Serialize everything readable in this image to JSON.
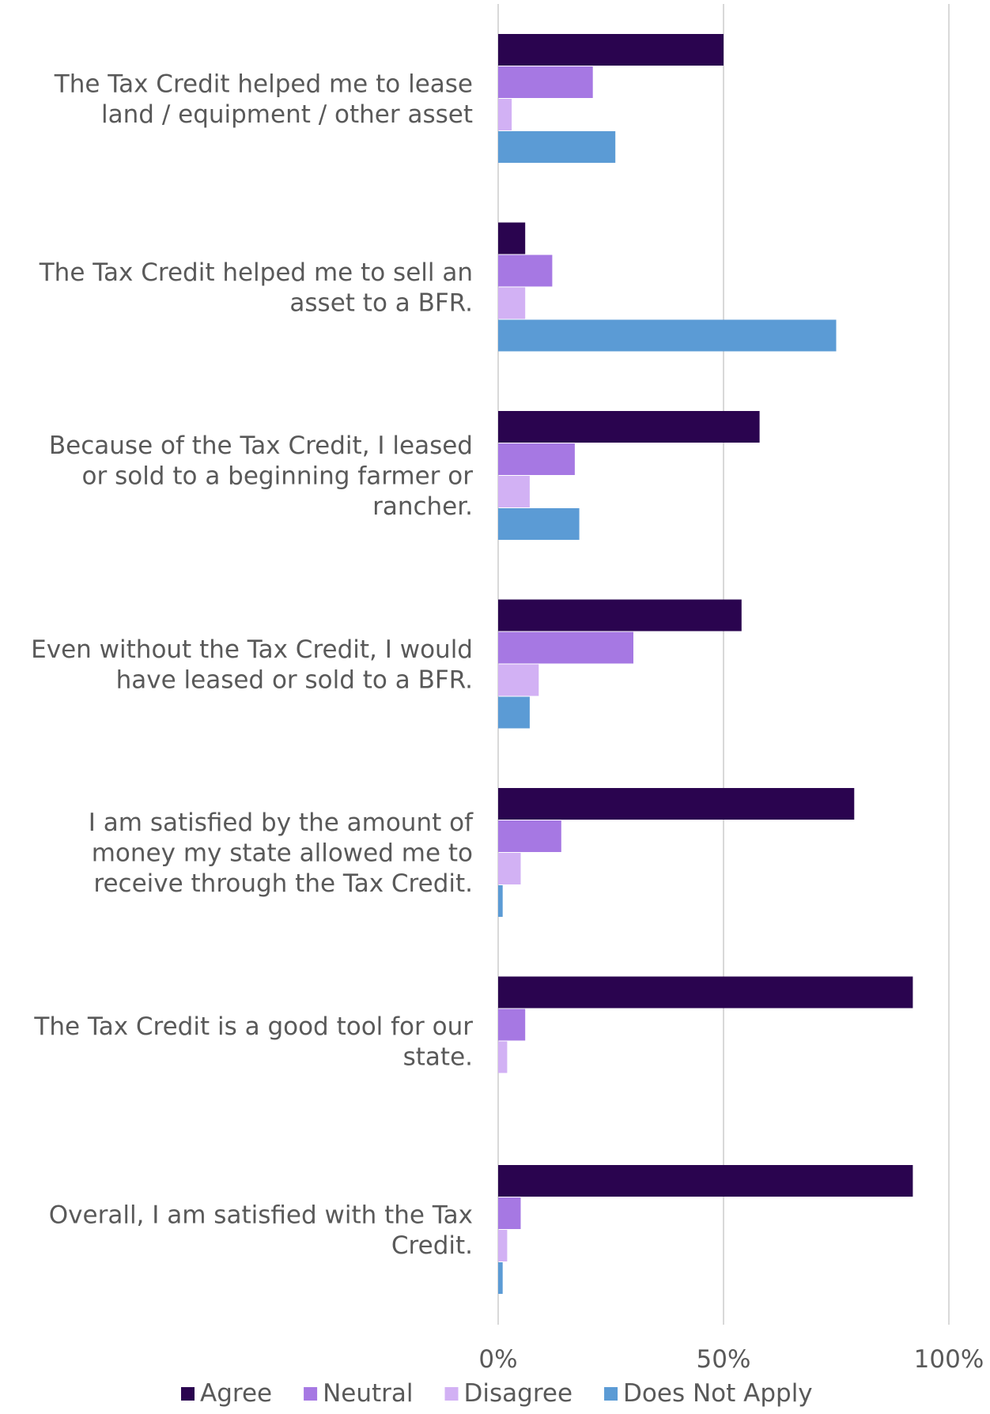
{
  "chart_data": {
    "type": "bar",
    "orientation": "horizontal",
    "categories": [
      "The Tax Credit helped me to lease land / equipment / other asset",
      "The Tax Credit helped me to sell an asset to a BFR.",
      "Because of the Tax Credit, I leased or sold to a beginning farmer or rancher.",
      "Even without the Tax Credit, I would have leased or sold to a BFR.",
      "I am satisfied by the amount of money my state allowed me to receive through the Tax Credit.",
      "The Tax Credit is a good tool for our state.",
      "Overall, I am satisfied with the Tax Credit."
    ],
    "category_lines": [
      [
        "The Tax Credit helped me to lease",
        "land / equipment / other asset"
      ],
      [
        "The Tax Credit helped me to sell an",
        "asset to a BFR."
      ],
      [
        "Because of the Tax Credit, I leased",
        "or sold to a beginning farmer or",
        "rancher."
      ],
      [
        "Even without the Tax Credit, I would",
        "have leased or sold to a BFR."
      ],
      [
        "I am satisfied by the amount of",
        "money my state allowed me to",
        "receive through the Tax Credit."
      ],
      [
        "The Tax Credit is a good tool for our",
        "state."
      ],
      [
        "Overall, I am satisfied with the Tax",
        "Credit."
      ]
    ],
    "series": [
      {
        "name": "Agree",
        "color": "#2a044f",
        "values": [
          50,
          6,
          58,
          54,
          79,
          92,
          92
        ]
      },
      {
        "name": "Neutral",
        "color": "#a678e3",
        "values": [
          21,
          12,
          17,
          30,
          14,
          6,
          5
        ]
      },
      {
        "name": "Disagree",
        "color": "#d2b1f4",
        "values": [
          3,
          6,
          7,
          9,
          5,
          2,
          2
        ]
      },
      {
        "name": "Does Not Apply",
        "color": "#5b9bd5",
        "values": [
          26,
          75,
          18,
          7,
          1,
          0,
          1
        ]
      }
    ],
    "xlim": [
      0,
      100
    ],
    "ticks": [
      "0%",
      "50%",
      "100%"
    ],
    "grid": true,
    "legend_position": "bottom"
  }
}
